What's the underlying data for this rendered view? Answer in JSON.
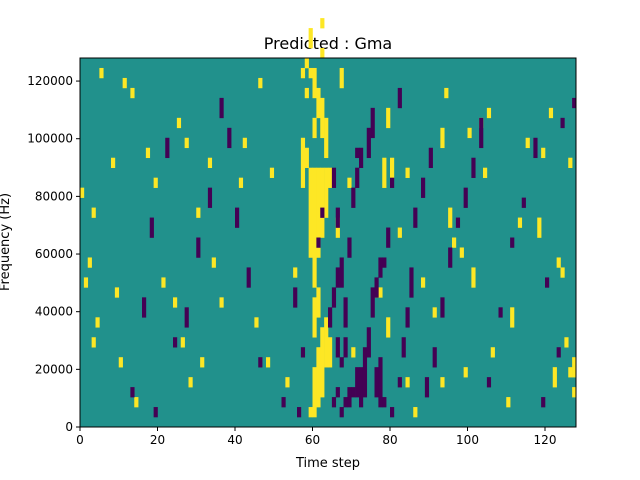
{
  "chart_data": {
    "type": "heatmap",
    "title": "Predicted : Gma",
    "xlabel": "Time step",
    "ylabel": "Frequency (Hz)",
    "xlim": [
      0,
      128
    ],
    "ylim": [
      0,
      128000
    ],
    "x_ticks": [
      0,
      20,
      40,
      60,
      80,
      100,
      120
    ],
    "y_ticks": [
      0,
      20000,
      40000,
      60000,
      80000,
      100000,
      120000
    ],
    "colormap": "viridis",
    "colors": {
      "low": "#440154",
      "mid": "#21918c",
      "high": "#fde725"
    },
    "background_value": 0,
    "cell_values": {
      "low": -1,
      "high": 1
    },
    "cells_high": [
      [
        59,
        1,
        2
      ],
      [
        60,
        1,
        6
      ],
      [
        61,
        2,
        8
      ],
      [
        62,
        3,
        10
      ],
      [
        63,
        6,
        11
      ],
      [
        64,
        6,
        9
      ],
      [
        60,
        9,
        13
      ],
      [
        61,
        11,
        14
      ],
      [
        60,
        14,
        17
      ],
      [
        59,
        17,
        26
      ],
      [
        60,
        17,
        26
      ],
      [
        61,
        17,
        26
      ],
      [
        62,
        19,
        26
      ],
      [
        63,
        21,
        26
      ],
      [
        64,
        24,
        26
      ],
      [
        63,
        27,
        31
      ],
      [
        62,
        29,
        33
      ],
      [
        61,
        31,
        34
      ],
      [
        60,
        33,
        36
      ],
      [
        59,
        35,
        36
      ],
      [
        58,
        36,
        37
      ],
      [
        59,
        38,
        40
      ],
      [
        62,
        40,
        41
      ],
      [
        62,
        37,
        38
      ],
      [
        57,
        24,
        29
      ],
      [
        58,
        26,
        28
      ],
      [
        60,
        29,
        31
      ],
      [
        58,
        33,
        34
      ],
      [
        57,
        35,
        36
      ],
      [
        67,
        34,
        36
      ],
      [
        70,
        7,
        8
      ],
      [
        66,
        19,
        21
      ],
      [
        69,
        24,
        25
      ],
      [
        78,
        24,
        27
      ],
      [
        79,
        30,
        32
      ],
      [
        80,
        25,
        27
      ],
      [
        76,
        13,
        14
      ],
      [
        77,
        13,
        14
      ],
      [
        79,
        9,
        11
      ],
      [
        84,
        4,
        5
      ],
      [
        82,
        19,
        20
      ],
      [
        84,
        25,
        26
      ],
      [
        93,
        28,
        30
      ],
      [
        94,
        33,
        34
      ],
      [
        96,
        18,
        19
      ],
      [
        98,
        17,
        18
      ],
      [
        101,
        14,
        16
      ],
      [
        99,
        5,
        6
      ],
      [
        3,
        8,
        9
      ],
      [
        4,
        10,
        11
      ],
      [
        1,
        14,
        15
      ],
      [
        2,
        16,
        17
      ],
      [
        3,
        21,
        22
      ],
      [
        0,
        23,
        24
      ],
      [
        8,
        26,
        27
      ],
      [
        11,
        34,
        35
      ],
      [
        5,
        35,
        36
      ],
      [
        9,
        13,
        14
      ],
      [
        10,
        6,
        7
      ],
      [
        14,
        2,
        3
      ],
      [
        13,
        33,
        34
      ],
      [
        17,
        27,
        28
      ],
      [
        19,
        24,
        25
      ],
      [
        21,
        14,
        15
      ],
      [
        24,
        12,
        13
      ],
      [
        26,
        8,
        9
      ],
      [
        25,
        30,
        31
      ],
      [
        27,
        28,
        29
      ],
      [
        30,
        21,
        22
      ],
      [
        28,
        4,
        5
      ],
      [
        33,
        26,
        27
      ],
      [
        34,
        16,
        17
      ],
      [
        31,
        6,
        7
      ],
      [
        36,
        12,
        13
      ],
      [
        41,
        24,
        25
      ],
      [
        42,
        28,
        29
      ],
      [
        45,
        10,
        11
      ],
      [
        49,
        25,
        26
      ],
      [
        48,
        6,
        7
      ],
      [
        46,
        34,
        35
      ],
      [
        53,
        4,
        5
      ],
      [
        55,
        15,
        16
      ],
      [
        86,
        1,
        2
      ],
      [
        88,
        14,
        15
      ],
      [
        93,
        4,
        5
      ],
      [
        91,
        11,
        12
      ],
      [
        95,
        20,
        22
      ],
      [
        100,
        29,
        30
      ],
      [
        103,
        30,
        31
      ],
      [
        106,
        7,
        8
      ],
      [
        104,
        25,
        26
      ],
      [
        105,
        31,
        32
      ],
      [
        110,
        2,
        3
      ],
      [
        111,
        10,
        12
      ],
      [
        113,
        20,
        21
      ],
      [
        115,
        28,
        29
      ],
      [
        118,
        19,
        21
      ],
      [
        122,
        4,
        6
      ],
      [
        124,
        15,
        16
      ],
      [
        126,
        26,
        27
      ],
      [
        127,
        3,
        4
      ],
      [
        125,
        8,
        9
      ],
      [
        121,
        31,
        32
      ],
      [
        119,
        27,
        28
      ],
      [
        123,
        16,
        17
      ],
      [
        126,
        5,
        6
      ],
      [
        127,
        5,
        7
      ]
    ],
    "cells_low": [
      [
        56,
        1,
        2
      ],
      [
        57,
        7,
        8
      ],
      [
        61,
        18,
        19
      ],
      [
        62,
        21,
        22
      ],
      [
        65,
        2,
        3
      ],
      [
        66,
        3,
        4
      ],
      [
        67,
        6,
        7
      ],
      [
        68,
        7,
        9
      ],
      [
        69,
        2,
        4
      ],
      [
        70,
        3,
        4
      ],
      [
        71,
        3,
        6
      ],
      [
        72,
        2,
        6
      ],
      [
        73,
        3,
        8
      ],
      [
        74,
        7,
        10
      ],
      [
        75,
        11,
        14
      ],
      [
        76,
        13,
        15
      ],
      [
        77,
        15,
        17
      ],
      [
        65,
        24,
        26
      ],
      [
        66,
        20,
        22
      ],
      [
        67,
        14,
        17
      ],
      [
        68,
        10,
        13
      ],
      [
        68,
        2,
        3
      ],
      [
        67,
        1,
        2
      ],
      [
        64,
        10,
        12
      ],
      [
        65,
        12,
        14
      ],
      [
        66,
        14,
        16
      ],
      [
        66,
        7,
        9
      ],
      [
        69,
        17,
        19
      ],
      [
        70,
        22,
        24
      ],
      [
        71,
        24,
        26
      ],
      [
        72,
        26,
        28
      ],
      [
        74,
        27,
        30
      ],
      [
        75,
        29,
        32
      ],
      [
        71,
        27,
        28
      ],
      [
        76,
        3,
        6
      ],
      [
        77,
        4,
        7
      ],
      [
        77,
        2,
        4
      ],
      [
        78,
        2,
        3
      ],
      [
        80,
        1,
        2
      ],
      [
        82,
        4,
        5
      ],
      [
        83,
        7,
        9
      ],
      [
        84,
        10,
        12
      ],
      [
        85,
        13,
        16
      ],
      [
        89,
        3,
        5
      ],
      [
        91,
        6,
        8
      ],
      [
        93,
        11,
        13
      ],
      [
        95,
        16,
        18
      ],
      [
        97,
        20,
        21
      ],
      [
        99,
        22,
        24
      ],
      [
        101,
        25,
        27
      ],
      [
        103,
        28,
        31
      ],
      [
        13,
        3,
        4
      ],
      [
        16,
        11,
        13
      ],
      [
        18,
        19,
        21
      ],
      [
        19,
        1,
        2
      ],
      [
        22,
        27,
        29
      ],
      [
        24,
        8,
        9
      ],
      [
        27,
        10,
        12
      ],
      [
        30,
        17,
        19
      ],
      [
        33,
        22,
        24
      ],
      [
        36,
        31,
        33
      ],
      [
        38,
        28,
        30
      ],
      [
        40,
        20,
        22
      ],
      [
        43,
        14,
        16
      ],
      [
        46,
        6,
        7
      ],
      [
        52,
        2,
        3
      ],
      [
        55,
        12,
        14
      ],
      [
        105,
        4,
        5
      ],
      [
        108,
        11,
        12
      ],
      [
        111,
        18,
        19
      ],
      [
        114,
        22,
        23
      ],
      [
        117,
        27,
        29
      ],
      [
        120,
        14,
        15
      ],
      [
        124,
        30,
        31
      ],
      [
        127,
        32,
        33
      ],
      [
        123,
        7,
        8
      ],
      [
        119,
        2,
        3
      ],
      [
        82,
        32,
        34
      ],
      [
        80,
        24,
        25
      ],
      [
        79,
        18,
        20
      ],
      [
        78,
        16,
        17
      ],
      [
        86,
        20,
        22
      ],
      [
        88,
        23,
        25
      ],
      [
        90,
        26,
        28
      ]
    ]
  }
}
